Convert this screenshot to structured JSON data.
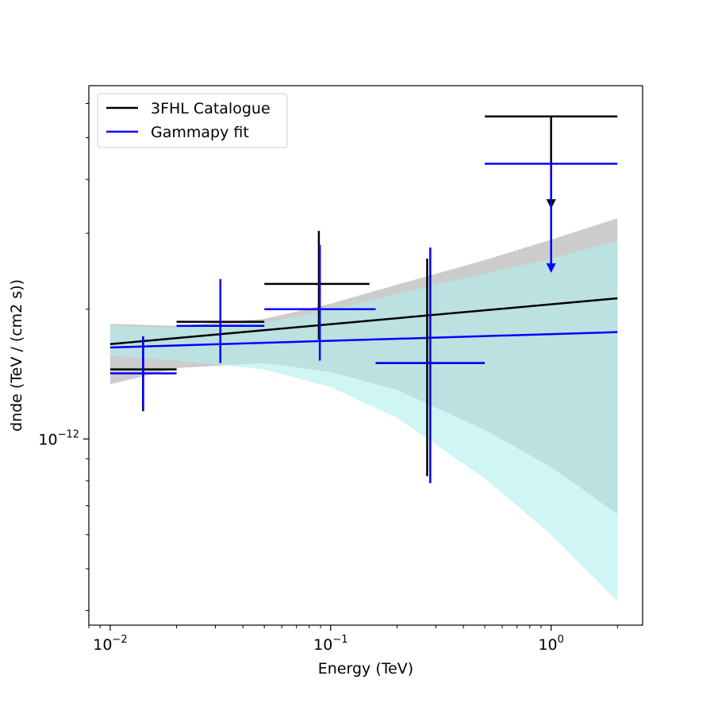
{
  "chart_data": {
    "type": "scatter",
    "title": "",
    "xlabel": "Energy (TeV)",
    "ylabel": "dnde (TeV / (cm2 s))",
    "xscale": "log",
    "yscale": "log",
    "xlim": [
      0.008,
      2.6
    ],
    "ylim": [
      3.7e-13,
      6.6e-12
    ],
    "x_ticks": [
      {
        "value": 0.01,
        "base": "10",
        "exp": "−2"
      },
      {
        "value": 0.1,
        "base": "10",
        "exp": "−1"
      },
      {
        "value": 1,
        "base": "10",
        "exp": "0"
      }
    ],
    "y_ticks": [
      {
        "value": 1e-12,
        "base": "10",
        "exp": "−12"
      }
    ],
    "legend": {
      "position": "top-left",
      "entries": [
        {
          "label": "3FHL Catalogue",
          "color": "#000000"
        },
        {
          "label": "Gammapy fit",
          "color": "#0000ff"
        }
      ]
    },
    "bands": [
      {
        "series": "3FHL Catalogue",
        "color": "#bfbfbf",
        "opacity": 0.8,
        "x": [
          0.01,
          0.02,
          0.05,
          0.1,
          0.2,
          0.5,
          1.0,
          2.0
        ],
        "upper": [
          1.85e-12,
          1.83e-12,
          1.9e-12,
          2.06e-12,
          2.28e-12,
          2.6e-12,
          2.9e-12,
          3.25e-12
        ],
        "lower": [
          1.34e-12,
          1.46e-12,
          1.5e-12,
          1.43e-12,
          1.3e-12,
          1.05e-12,
          8.6e-13,
          6.7e-13
        ]
      },
      {
        "series": "Gammapy fit",
        "color": "#afeeee",
        "opacity": 0.6,
        "x": [
          0.01,
          0.02,
          0.05,
          0.1,
          0.2,
          0.5,
          1.0,
          2.0
        ],
        "upper": [
          1.83e-12,
          1.81e-12,
          1.86e-12,
          1.99e-12,
          2.17e-12,
          2.42e-12,
          2.62e-12,
          2.88e-12
        ],
        "lower": [
          1.56e-12,
          1.52e-12,
          1.45e-12,
          1.32e-12,
          1.12e-12,
          8.1e-13,
          6e-13,
          4.2e-13
        ]
      }
    ],
    "series": [
      {
        "name": "3FHL Catalogue",
        "color": "#000000",
        "model": {
          "x": [
            0.01,
            2.0
          ],
          "y": [
            1.66e-12,
            2.12e-12
          ]
        },
        "points": [
          {
            "x": 0.0141,
            "xlo": 0.01,
            "xhi": 0.02,
            "y": 1.45e-12,
            "ylo": 1.16e-12,
            "yhi": 1.73e-12
          },
          {
            "x": 0.0316,
            "xlo": 0.02,
            "xhi": 0.05,
            "y": 1.87e-12,
            "ylo": 1.57e-12,
            "yhi": 1.87e-12
          },
          {
            "x": 0.0884,
            "xlo": 0.05,
            "xhi": 0.15,
            "y": 2.29e-12,
            "ylo": 1.7e-12,
            "yhi": 3.04e-12
          },
          {
            "x": 0.274,
            "xlo": 0.16,
            "xhi": 0.5,
            "y": 1.5e-12,
            "ylo": 8.2e-13,
            "yhi": 2.62e-12
          },
          {
            "x": 1.0,
            "xlo": 0.5,
            "xhi": 2.0,
            "y": 5.6e-12,
            "ylo": 3.45e-12,
            "yhi": 5.6e-12,
            "upper_limit": true
          }
        ]
      },
      {
        "name": "Gammapy fit",
        "color": "#0000ff",
        "model": {
          "x": [
            0.01,
            2.0
          ],
          "y": [
            1.63e-12,
            1.77e-12
          ]
        },
        "points": [
          {
            "x": 0.0141,
            "xlo": 0.01,
            "xhi": 0.02,
            "y": 1.42e-12,
            "ylo": 1.17e-12,
            "yhi": 1.73e-12
          },
          {
            "x": 0.0316,
            "xlo": 0.02,
            "xhi": 0.05,
            "y": 1.83e-12,
            "ylo": 1.5e-12,
            "yhi": 2.35e-12
          },
          {
            "x": 0.0893,
            "xlo": 0.05,
            "xhi": 0.16,
            "y": 2e-12,
            "ylo": 1.52e-12,
            "yhi": 2.82e-12
          },
          {
            "x": 0.283,
            "xlo": 0.16,
            "xhi": 0.5,
            "y": 1.5e-12,
            "ylo": 7.9e-13,
            "yhi": 2.78e-12
          },
          {
            "x": 1.0,
            "xlo": 0.5,
            "xhi": 2.0,
            "y": 4.35e-12,
            "ylo": 2.45e-12,
            "yhi": 4.35e-12,
            "upper_limit": true
          }
        ]
      }
    ]
  }
}
